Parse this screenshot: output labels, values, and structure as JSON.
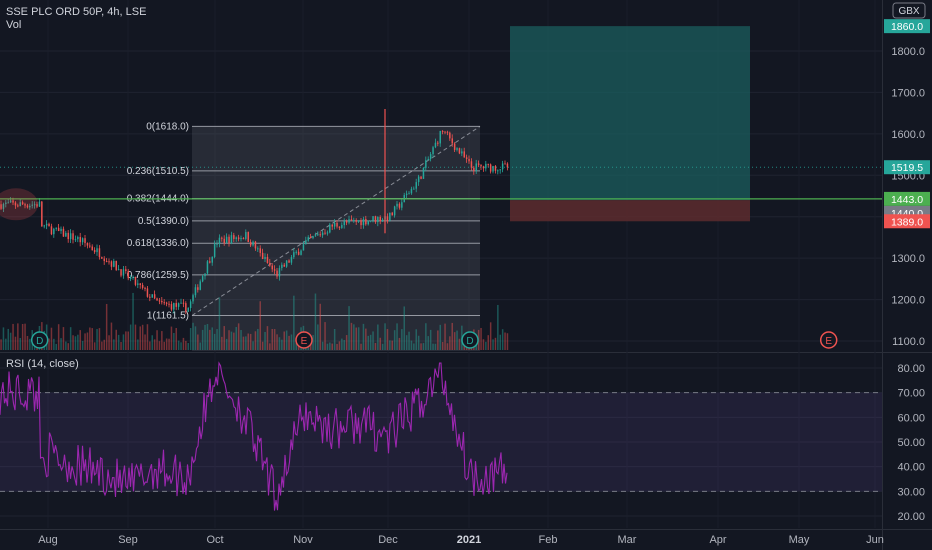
{
  "header": {
    "symbol_line": "SSE PLC ORD 50P, 4h, LSE",
    "vol_label": "Vol",
    "currency": "GBX"
  },
  "rsi_title": "RSI (14, close)",
  "colors": {
    "bg": "#131722",
    "up": "#26a69a",
    "down": "#ef5350",
    "rsi_line": "#9c27b0",
    "rsi_band": "#7e57c2",
    "horizontal_line": "#4caf50",
    "fib_box": "#787b86",
    "target_zone": "#1b5e5e",
    "stop_zone": "#5d2b2e"
  },
  "icons": {
    "dividend": "D",
    "earnings": "E"
  },
  "chart_data": [
    {
      "type": "candlestick",
      "title": "SSE PLC ORD 50P, 4h, LSE",
      "xlabel": "",
      "ylabel": "",
      "x_ticks": [
        "Aug",
        "Sep",
        "Oct",
        "Nov",
        "Dec",
        "2021",
        "Feb",
        "Mar",
        "Apr",
        "May",
        "Jun"
      ],
      "y_ticks": [
        1100.0,
        1200.0,
        1300.0,
        1400.0,
        1500.0,
        1600.0,
        1700.0,
        1800.0
      ],
      "ylim": [
        1075,
        1900
      ],
      "price_labels": [
        {
          "text": "1860.0",
          "value": 1860.0,
          "kind": "target"
        },
        {
          "text": "1519.5",
          "value": 1519.5,
          "kind": "last"
        },
        {
          "text": "1443.0",
          "value": 1443.0,
          "kind": "hline"
        },
        {
          "text": "1440.0",
          "value": 1440.0,
          "kind": "entry"
        },
        {
          "text": "1389.0",
          "value": 1389.0,
          "kind": "stop"
        }
      ],
      "horizontal_line": 1443.0,
      "fibonacci": {
        "levels": [
          {
            "label": "0(1618.0)",
            "value": 1618.0
          },
          {
            "label": "0.236(1510.5)",
            "value": 1510.5
          },
          {
            "label": "0.382(1444.0)",
            "value": 1444.0
          },
          {
            "label": "0.5(1390.0)",
            "value": 1390.0
          },
          {
            "label": "0.618(1336.0)",
            "value": 1336.0
          },
          {
            "label": "0.786(1259.5)",
            "value": 1259.5
          },
          {
            "label": "1(1161.5)",
            "value": 1161.5
          }
        ]
      },
      "position": {
        "entry": 1440.0,
        "target": 1860.0,
        "stop": 1389.0
      },
      "events": [
        {
          "label": "D",
          "at": "late Jul"
        },
        {
          "label": "E",
          "at": "mid Nov"
        },
        {
          "label": "D",
          "at": "mid Jan"
        },
        {
          "label": "E",
          "at": "late May"
        }
      ],
      "close_path": [
        [
          "late Jul",
          1430
        ],
        [
          "early Aug",
          1400
        ],
        [
          "mid Aug",
          1370
        ],
        [
          "late Aug",
          1345
        ],
        [
          "early Sep",
          1310
        ],
        [
          "mid Sep",
          1250
        ],
        [
          "late Sep",
          1190
        ],
        [
          "early Oct",
          1180
        ],
        [
          "mid Oct",
          1340
        ],
        [
          "late Oct",
          1355
        ],
        [
          "early Nov",
          1260
        ],
        [
          "mid Nov",
          1335
        ],
        [
          "late Nov",
          1380
        ],
        [
          "early Dec",
          1390
        ],
        [
          "mid Dec",
          1400
        ],
        [
          "late Dec",
          1490
        ],
        [
          "early Jan",
          1610
        ],
        [
          "mid Jan",
          1519.5
        ]
      ]
    },
    {
      "type": "line",
      "title": "RSI (14, close)",
      "xlabel": "",
      "ylabel": "",
      "y_ticks": [
        20.0,
        30.0,
        40.0,
        50.0,
        60.0,
        70.0,
        80.0
      ],
      "ylim": [
        17,
        85
      ],
      "bands": [
        30,
        70
      ],
      "series": [
        {
          "values_path": [
            [
              "late Jul",
              70
            ],
            [
              "early Aug",
              42
            ],
            [
              "mid Aug",
              45
            ],
            [
              "late Aug",
              40
            ],
            [
              "early Sep",
              38
            ],
            [
              "mid Sep",
              32
            ],
            [
              "late Sep",
              40
            ],
            [
              "early Oct",
              35
            ],
            [
              "mid Oct",
              80
            ],
            [
              "late Oct",
              60
            ],
            [
              "early Nov",
              28
            ],
            [
              "mid Nov",
              62
            ],
            [
              "late Nov",
              55
            ],
            [
              "early Dec",
              58
            ],
            [
              "mid Dec",
              52
            ],
            [
              "late Dec",
              65
            ],
            [
              "early Jan",
              78
            ],
            [
              "mid Jan",
              37
            ]
          ]
        }
      ]
    }
  ]
}
